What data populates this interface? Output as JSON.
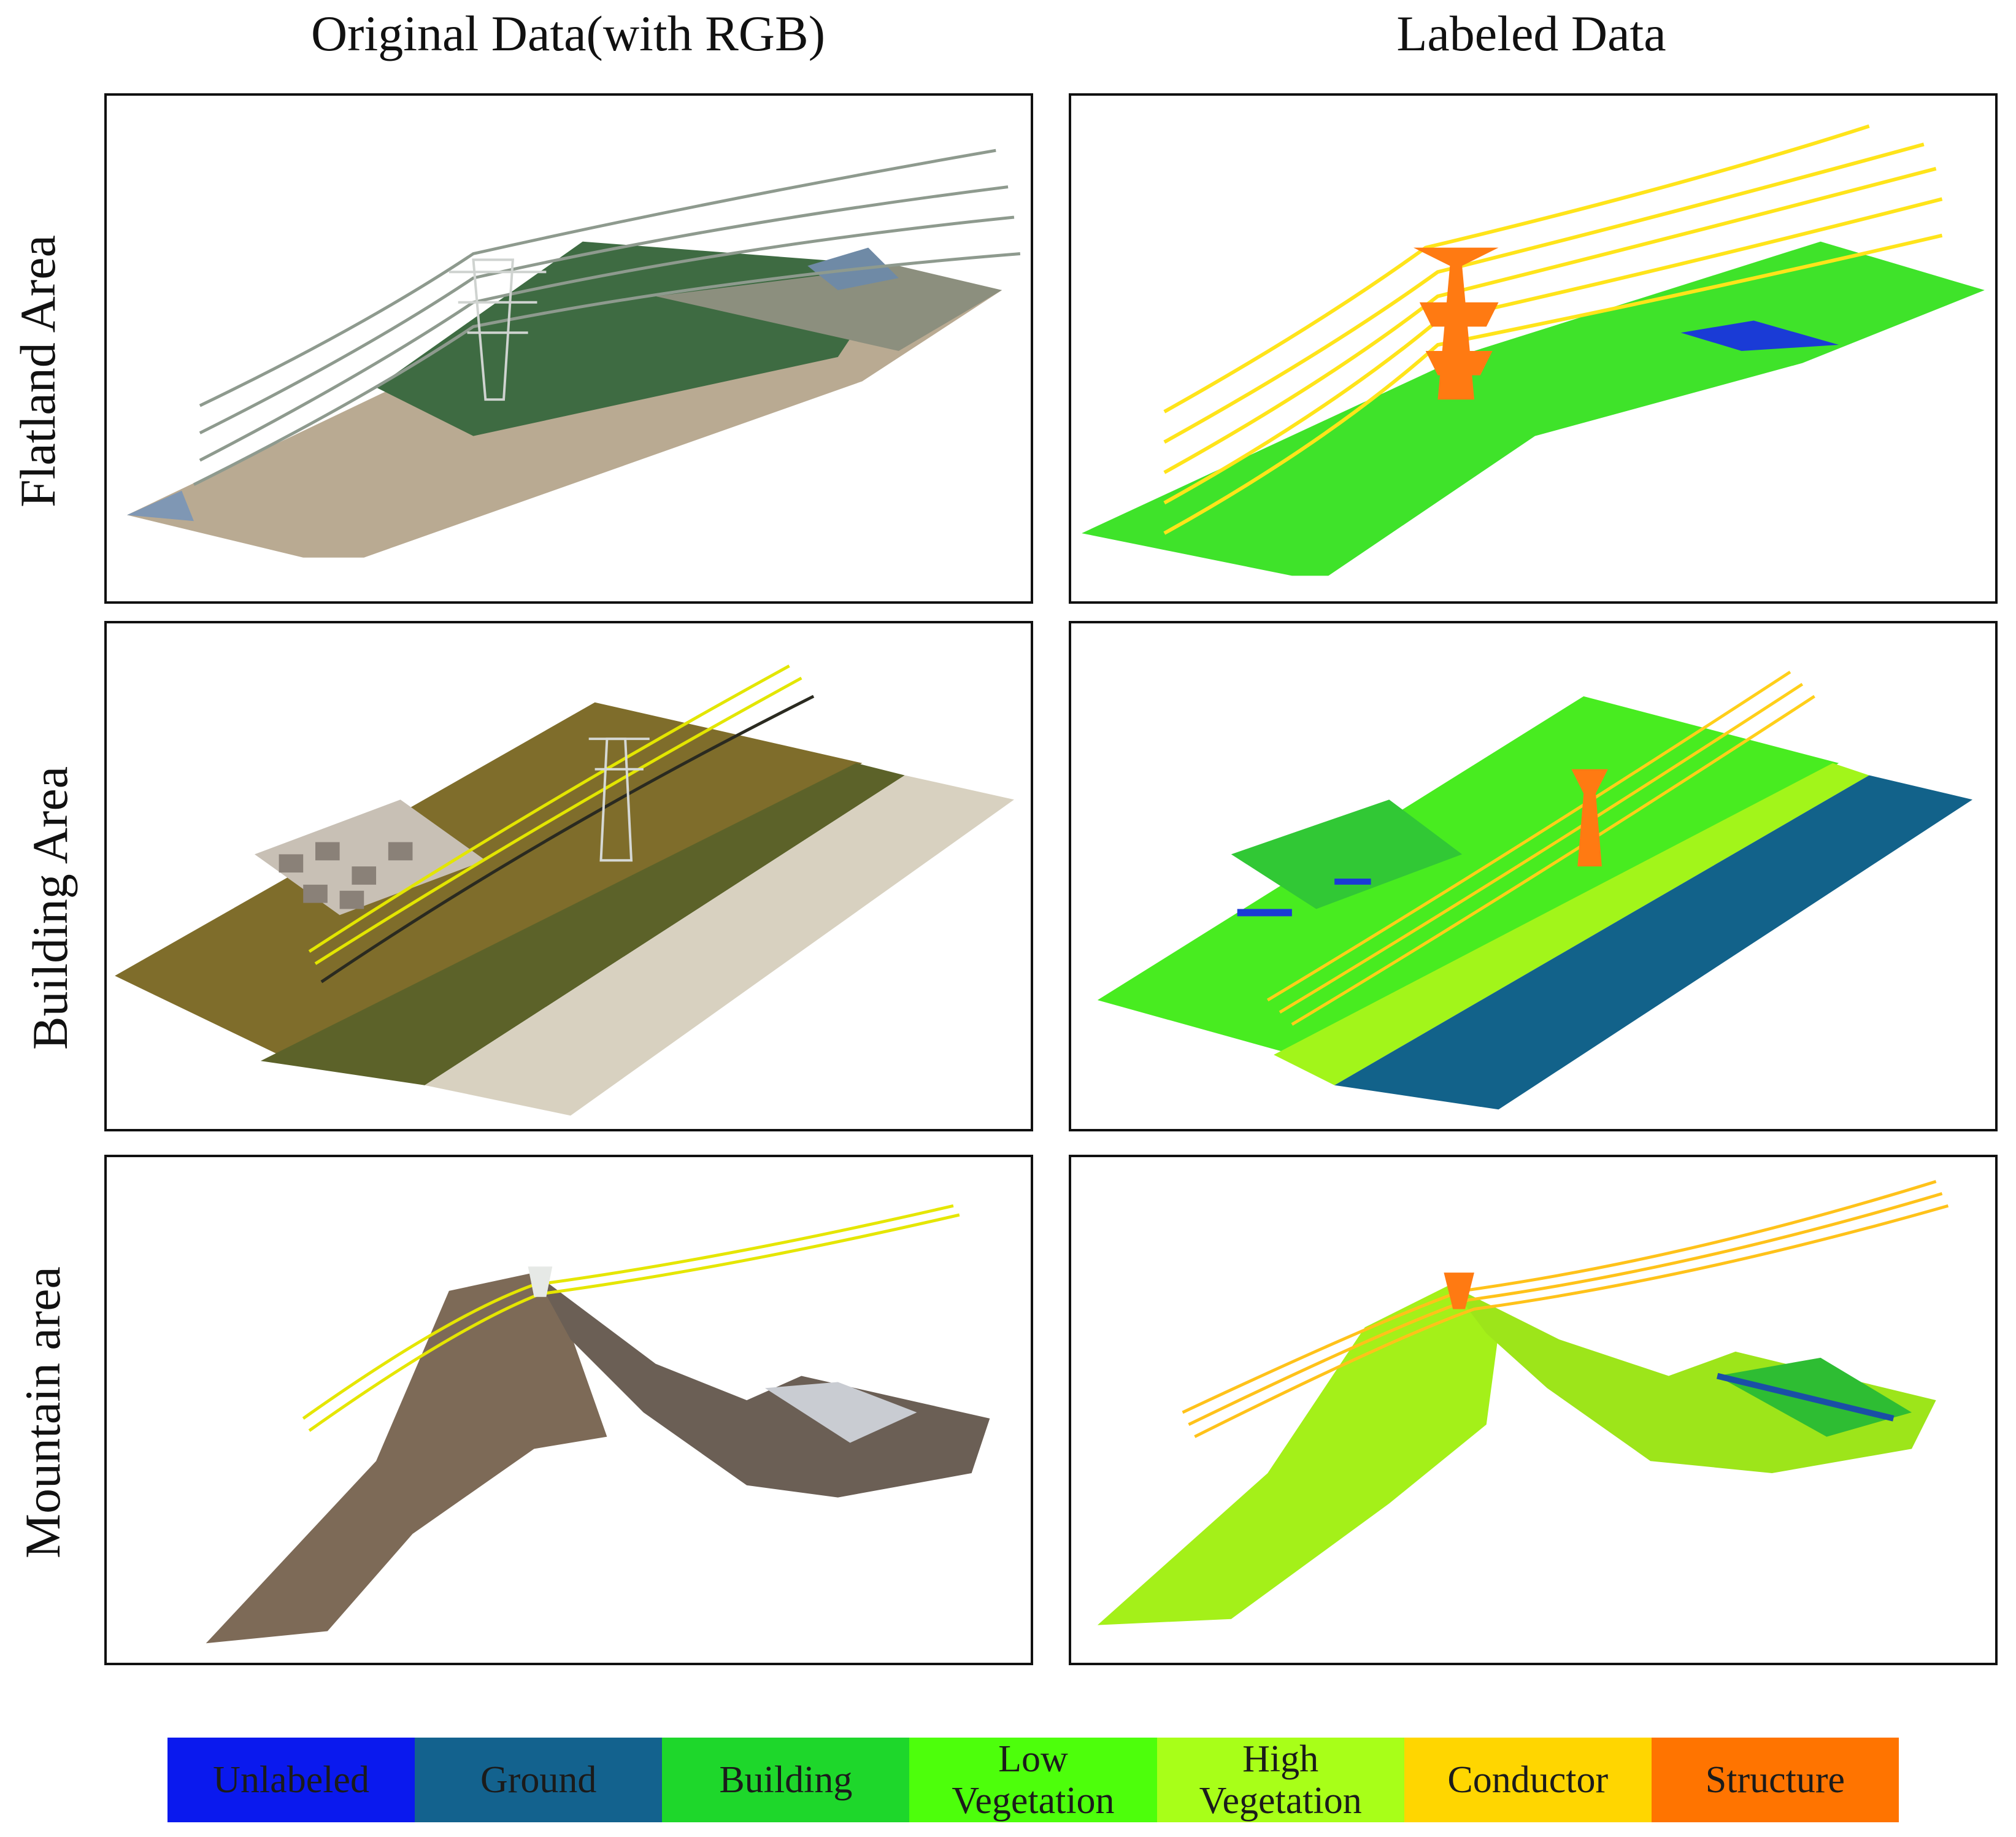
{
  "columns": [
    "Original Data(with RGB)",
    "Labeled Data"
  ],
  "rows": [
    "Flatland Area",
    "Building Area",
    "Mountain area"
  ],
  "legend": [
    {
      "label": "Unlabeled",
      "color": "#0a19ee"
    },
    {
      "label": "Ground",
      "color": "#13628e"
    },
    {
      "label": "Building",
      "color": "#1ed72b"
    },
    {
      "label": "Low\nVegetation",
      "color": "#4dff0b"
    },
    {
      "label": "High\nVegetation",
      "color": "#a8ff18"
    },
    {
      "label": "Conductor",
      "color": "#ffd600"
    },
    {
      "label": "Structure",
      "color": "#ff7400"
    }
  ]
}
